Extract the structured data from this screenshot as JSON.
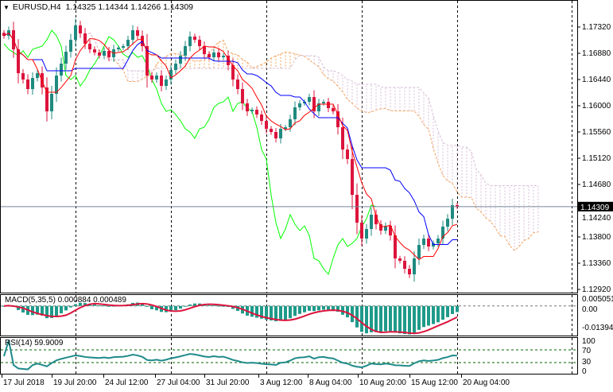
{
  "header": {
    "symbol": "EURUSD,H4",
    "ohlc": "1.14325 1.14344 1.14266 1.14309"
  },
  "indicators": {
    "macd_label": "MACD(5,35,5) 0.000884 0.000489",
    "rsi_label": "RSI(14) 59.9009"
  },
  "colors": {
    "bull": "#1f8a80",
    "bear": "#dc143c",
    "tenkan": "#ff0000",
    "kijun": "#0000ff",
    "chikou": "#00ff00",
    "span_a": "#f4a460",
    "span_b": "#d8bfd8",
    "macd_hist": "#1f9a8a",
    "macd_signal": "#dc143c",
    "rsi": "#1f8a8a",
    "rsi_levels": "#006400",
    "price_line": "#778899"
  },
  "chart_data": {
    "type": "candlestick",
    "symbol": "EURUSD",
    "timeframe": "H4",
    "current_price": 1.14309,
    "current_price_label": "1.14309",
    "price_ticks": [
      "1.17320",
      "1.16880",
      "1.16440",
      "1.16000",
      "1.15560",
      "1.15120",
      "1.14680",
      "1.14240",
      "1.13800",
      "1.13360",
      "1.12920"
    ],
    "ylim": [
      1.1292,
      1.1762
    ],
    "time_labels": [
      "17 Jul 2018",
      "19 Jul 20:00",
      "24 Jul 12:00",
      "27 Jul 04:00",
      "31 Jul 20:00",
      "3 Aug 12:00",
      "8 Aug 04:00",
      "10 Aug 20:00",
      "15 Aug 12:00",
      "20 Aug 04:00"
    ],
    "close": [
      1.17173,
      1.17266,
      1.16946,
      1.16546,
      1.1644,
      1.1628,
      1.16466,
      1.16546,
      1.16306,
      1.15906,
      1.162,
      1.16506,
      1.16706,
      1.16906,
      1.17106,
      1.17346,
      1.17213,
      1.1704,
      1.16946,
      1.16893,
      1.1684,
      1.1692,
      1.16813,
      1.16946,
      1.16973,
      1.17,
      1.17106,
      1.17266,
      1.17173,
      1.17,
      1.16506,
      1.1644,
      1.16506,
      1.16333,
      1.1644,
      1.166,
      1.16706,
      1.1684,
      1.17,
      1.1716,
      1.17106,
      1.17,
      1.16866,
      1.16813,
      1.16893,
      1.16813,
      1.1684,
      1.1668,
      1.1644,
      1.1628,
      1.1604,
      1.15906,
      1.15933,
      1.15853,
      1.15746,
      1.15613,
      1.1556,
      1.15453,
      1.15613,
      1.1564,
      1.15773,
      1.15973,
      1.1604,
      1.16066,
      1.16146,
      1.15906,
      1.1604,
      1.16066,
      1.1596,
      1.15906,
      1.1564,
      1.15266,
      1.15106,
      1.14506,
      1.1404,
      1.13773,
      1.13933,
      1.14173,
      1.14013,
      1.13906,
      1.13986,
      1.13826,
      1.1344,
      1.134,
      1.13266,
      1.13173,
      1.1344,
      1.13666,
      1.13773,
      1.1364,
      1.13693,
      1.13773,
      1.13973,
      1.14106,
      1.14333,
      1.14309
    ],
    "indicators": [
      "Ichimoku",
      "MACD(5,35,5)",
      "RSI(14)"
    ],
    "macd": {
      "axis_labels": [
        "0.005051",
        "0.00",
        "-0.013946"
      ],
      "ylim": [
        -0.013946,
        0.005051
      ]
    },
    "rsi": {
      "axis_labels": [
        "100",
        "70",
        "30",
        "0"
      ],
      "levels": [
        70,
        30
      ],
      "ylim": [
        0,
        100
      ]
    }
  }
}
